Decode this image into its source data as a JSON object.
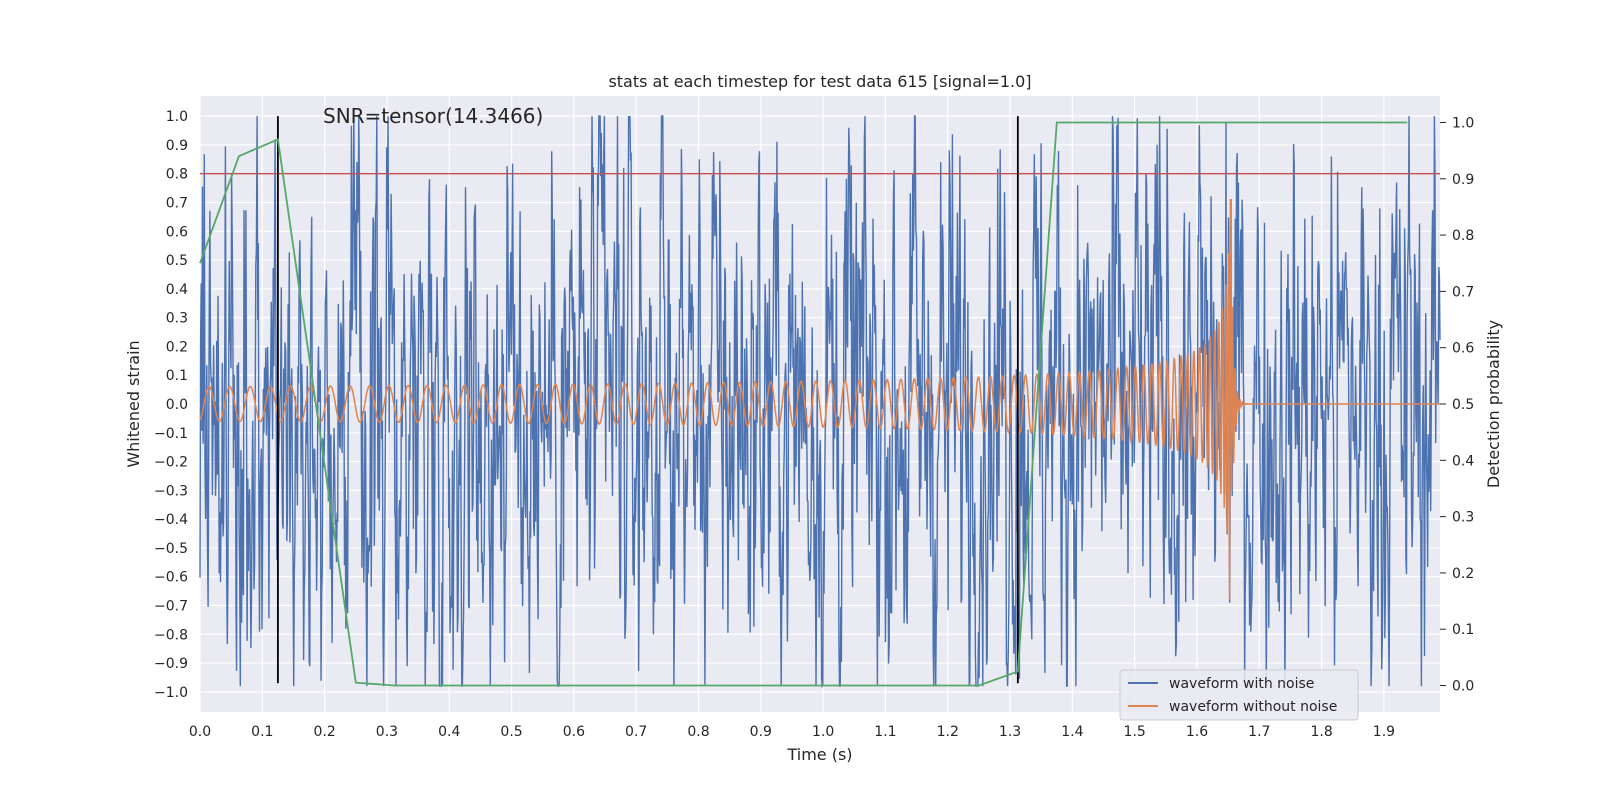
{
  "chart_data": {
    "type": "line",
    "title": "stats at each timestep for test data 615 [signal=1.0]",
    "xlabel": "Time (s)",
    "ylabel": "Whitened strain",
    "y2label": "Detection probability",
    "annotation": "SNR=tensor(14.3466)",
    "xlim": [
      0.0,
      1.99
    ],
    "ylim": [
      -1.07,
      1.07
    ],
    "y2lim": [
      -0.047,
      1.047
    ],
    "xticks": [
      0.0,
      0.1,
      0.2,
      0.3,
      0.4,
      0.5,
      0.6,
      0.7,
      0.8,
      0.9,
      1.0,
      1.1,
      1.2,
      1.3,
      1.4,
      1.5,
      1.6,
      1.7,
      1.8,
      1.9
    ],
    "xtick_labels": [
      "0.0",
      "0.1",
      "0.2",
      "0.3",
      "0.4",
      "0.5",
      "0.6",
      "0.7",
      "0.8",
      "0.9",
      "1.0",
      "1.1",
      "1.2",
      "1.3",
      "1.4",
      "1.5",
      "1.6",
      "1.7",
      "1.8",
      "1.9"
    ],
    "yticks": [
      1.0,
      0.9,
      0.8,
      0.7,
      0.6,
      0.5,
      0.4,
      0.3,
      0.2,
      0.1,
      0.0,
      -0.1,
      -0.2,
      -0.3,
      -0.4,
      -0.5,
      -0.6,
      -0.7,
      -0.8,
      -0.9,
      -1.0
    ],
    "ytick_labels": [
      "1.0",
      "0.9",
      "0.8",
      "0.7",
      "0.6",
      "0.5",
      "0.4",
      "0.3",
      "0.2",
      "0.1",
      "0.0",
      "−0.1",
      "−0.2",
      "−0.3",
      "−0.4",
      "−0.5",
      "−0.6",
      "−0.7",
      "−0.8",
      "−0.9",
      "−1.0"
    ],
    "y2ticks": [
      1.0,
      0.9,
      0.8,
      0.7,
      0.6,
      0.5,
      0.4,
      0.3,
      0.2,
      0.1,
      0.0
    ],
    "y2tick_labels": [
      "1.0",
      "0.9",
      "0.8",
      "0.7",
      "0.6",
      "0.5",
      "0.4",
      "0.3",
      "0.2",
      "0.1",
      "0.0"
    ],
    "grid": true,
    "legend_position": "lower-right",
    "series": [
      {
        "name": "waveform with noise",
        "color": "#4c72b0",
        "axis": "left",
        "kind": "noisy strain, approx. range -0.98 to 1.0"
      },
      {
        "name": "waveform without noise",
        "color": "#dd8452",
        "axis": "left",
        "kind": "chirp, amplitude 0.05 growing to ~0.7 at merger t=1.655 s, ringdown to 0 by 1.67 s"
      },
      {
        "name": "",
        "color": "#55a868",
        "axis": "right",
        "x": [
          0.0,
          0.0625,
          0.125,
          0.25,
          0.3125,
          1.25,
          1.3125,
          1.375,
          1.9375
        ],
        "y": [
          0.75,
          0.94,
          0.97,
          0.005,
          0.0,
          0.0,
          0.025,
          1.0,
          1.0
        ]
      }
    ],
    "hlines": [
      {
        "y": 0.8,
        "axis": "left",
        "color": "#c44e52"
      }
    ],
    "vlines": [
      {
        "x": 0.125,
        "color": "#000000"
      },
      {
        "x": 1.3125,
        "color": "#000000"
      }
    ],
    "merger_time": 1.655
  }
}
